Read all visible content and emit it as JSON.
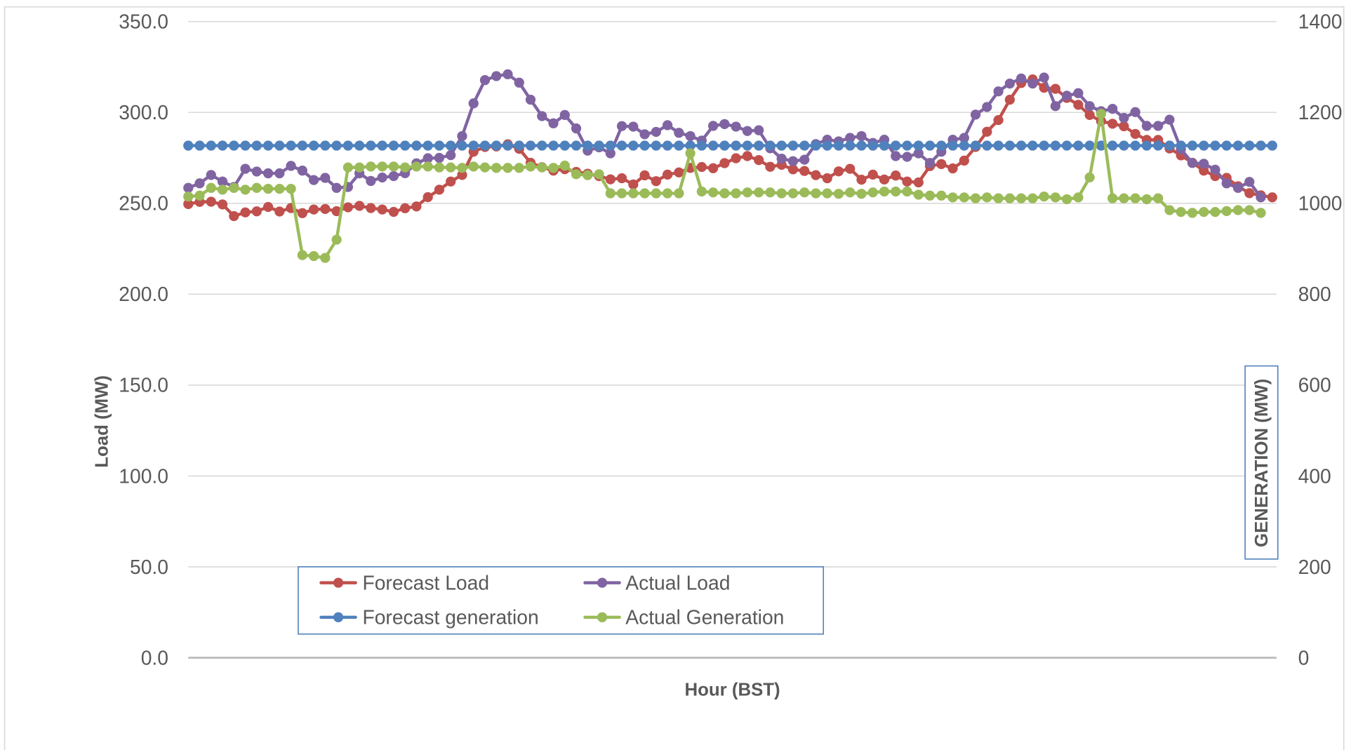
{
  "chart_data": {
    "type": "line",
    "xlabel": "Hour (BST)",
    "ylabel": "Load (MW)",
    "y2label": "GENERATION (MW)",
    "ylim": [
      0,
      350
    ],
    "y2lim": [
      0,
      1400
    ],
    "y_ticks": [
      "350.0",
      "300.0",
      "250.0",
      "200.0",
      "150.0",
      "100.0",
      "50.0",
      "0.0"
    ],
    "y2_ticks": [
      "1400",
      "1200",
      "1000",
      "800",
      "600",
      "400",
      "200",
      "0"
    ],
    "grid": "horizontal",
    "legend_position": "bottom-left",
    "series": [
      {
        "name": "Forecast Load",
        "axis": "left",
        "color": "#C0504D",
        "values": [
          249.6,
          250.8,
          250.9,
          249.4,
          243.0,
          245.0,
          245.6,
          248.0,
          245.5,
          247.4,
          244.6,
          246.6,
          246.9,
          245.7,
          247.8,
          248.6,
          247.4,
          246.6,
          245.3,
          247.3,
          248.3,
          253.4,
          257.5,
          262.0,
          265.6,
          278.4,
          281.0,
          281.3,
          282.5,
          280.0,
          272.3,
          269.9,
          268.0,
          268.8,
          267.3,
          266.3,
          265.0,
          263.2,
          263.8,
          260.4,
          265.4,
          262.2,
          265.8,
          267.0,
          269.5,
          270.0,
          269.3,
          272.1,
          274.8,
          276.0,
          273.8,
          270.1,
          271.2,
          268.7,
          267.8,
          265.5,
          263.8,
          267.6,
          269.0,
          263.0,
          265.8,
          263.1,
          265.3,
          262.0,
          261.5,
          270.5,
          271.6,
          269.2,
          273.5,
          281.0,
          289.4,
          295.8,
          307.0,
          316.2,
          318.2,
          313.6,
          313.0,
          308.0,
          304.2,
          298.6,
          295.2,
          293.8,
          292.4,
          288.2,
          284.9,
          284.9,
          280.2,
          276.4,
          272.3,
          268.0,
          265.0,
          264.0,
          259.4,
          255.6,
          254.4,
          253.3
        ]
      },
      {
        "name": "Actual Load",
        "axis": "left",
        "color": "#8064A2",
        "values": [
          258.5,
          261.0,
          265.6,
          262.0,
          259.0,
          269.0,
          267.5,
          266.5,
          266.5,
          270.6,
          268.0,
          262.8,
          264.0,
          258.5,
          259.0,
          266.5,
          262.3,
          264.2,
          265.0,
          266.6,
          272.0,
          274.8,
          275.0,
          276.5,
          287.0,
          305.0,
          317.8,
          320.0,
          321.0,
          316.4,
          307.0,
          298.0,
          294.0,
          298.6,
          291.2,
          279.0,
          280.8,
          277.5,
          292.5,
          292.2,
          288.0,
          289.3,
          293.0,
          288.8,
          287.0,
          284.5,
          292.6,
          293.6,
          292.2,
          289.8,
          290.2,
          280.3,
          274.6,
          273.2,
          274.0,
          282.6,
          285.0,
          284.1,
          286.0,
          287.0,
          283.2,
          285.0,
          276.0,
          275.6,
          277.5,
          272.2,
          278.4,
          285.0,
          286.0,
          298.8,
          303.0,
          311.6,
          315.9,
          318.7,
          315.9,
          319.2,
          303.5,
          309.2,
          310.6,
          303.5,
          300.7,
          302.0,
          297.0,
          300.2,
          292.6,
          292.6,
          296.0,
          279.8,
          272.2,
          271.8,
          268.5,
          261.0,
          258.5,
          261.8,
          253.3
        ]
      },
      {
        "name": "Forecast generation",
        "axis": "right",
        "color": "#4F81BD",
        "values": [
          1127,
          1127,
          1127,
          1127,
          1127,
          1127,
          1127,
          1127,
          1127,
          1127,
          1127,
          1127,
          1127,
          1127,
          1127,
          1127,
          1127,
          1127,
          1127,
          1127,
          1127,
          1127,
          1127,
          1127,
          1127,
          1127,
          1127,
          1127,
          1127,
          1127,
          1127,
          1127,
          1127,
          1127,
          1127,
          1127,
          1127,
          1127,
          1127,
          1127,
          1127,
          1127,
          1127,
          1127,
          1127,
          1127,
          1127,
          1127,
          1127,
          1127,
          1127,
          1127,
          1127,
          1127,
          1127,
          1127,
          1127,
          1127,
          1127,
          1127,
          1127,
          1127,
          1127,
          1127,
          1127,
          1127,
          1127,
          1127,
          1127,
          1127,
          1127,
          1127,
          1127,
          1127,
          1127,
          1127,
          1127,
          1127,
          1127,
          1127,
          1127,
          1127,
          1127,
          1127,
          1127,
          1127,
          1127,
          1127,
          1127,
          1127,
          1127,
          1127,
          1127,
          1127,
          1127,
          1127
        ]
      },
      {
        "name": "Actual Generation",
        "axis": "right",
        "color": "#9BBB59",
        "values": [
          1015,
          1017,
          1034,
          1030,
          1034,
          1030,
          1034,
          1032,
          1032,
          1032,
          886,
          884,
          880,
          920,
          1079,
          1079,
          1081,
          1081,
          1081,
          1079,
          1081,
          1081,
          1079,
          1079,
          1078,
          1081,
          1079,
          1078,
          1078,
          1078,
          1081,
          1079,
          1078,
          1083,
          1064,
          1062,
          1064,
          1022,
          1022,
          1022,
          1022,
          1022,
          1022,
          1022,
          1110,
          1026,
          1024,
          1022,
          1022,
          1024,
          1024,
          1024,
          1022,
          1022,
          1024,
          1022,
          1022,
          1021,
          1024,
          1021,
          1024,
          1026,
          1026,
          1026,
          1019,
          1017,
          1017,
          1013,
          1013,
          1011,
          1013,
          1011,
          1011,
          1011,
          1011,
          1015,
          1013,
          1009,
          1013,
          1057,
          1197,
          1011,
          1011,
          1011,
          1009,
          1011,
          985,
          981,
          979,
          981,
          981,
          983,
          985,
          985,
          979
        ]
      }
    ]
  }
}
